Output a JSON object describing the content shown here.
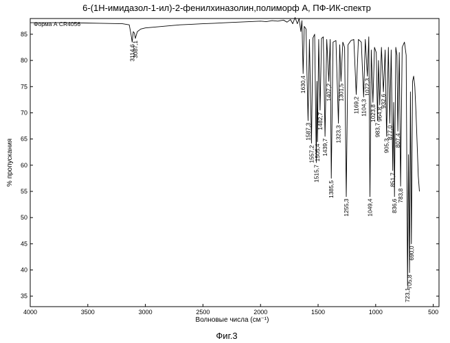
{
  "figure_caption": "Фиг.3",
  "chart_data": {
    "type": "line",
    "title": "6-(1Н-имидазол-1-ил)-2-фенилхиназолин,полиморф А, ПФ-ИК-спектр",
    "series_label": "Форма А CR4056",
    "xlabel": "Волновые числа (см⁻¹)",
    "ylabel": "% пропускания",
    "xlim": [
      4000,
      450
    ],
    "ylim": [
      33,
      88
    ],
    "x_ticks": [
      4000,
      3500,
      3000,
      2500,
      2000,
      1500,
      1000,
      500
    ],
    "y_ticks": [
      35,
      40,
      45,
      50,
      55,
      60,
      65,
      70,
      75,
      80,
      85
    ],
    "grid": false,
    "line_color": "#000000",
    "peaks": [
      {
        "label": "3114,6",
        "x": 3114.6,
        "y": 83.5
      },
      {
        "label": "3087,1",
        "x": 3087.1,
        "y": 84.2
      },
      {
        "label": "1630,4",
        "x": 1630.4,
        "y": 77.5
      },
      {
        "label": "1587,3",
        "x": 1587.3,
        "y": 68.5
      },
      {
        "label": "1557,2",
        "x": 1557.2,
        "y": 64.2
      },
      {
        "label": "1515,7",
        "x": 1515.7,
        "y": 60.5
      },
      {
        "label": "1505,4",
        "x": 1505.4,
        "y": 64.5
      },
      {
        "label": "1482,7",
        "x": 1482.7,
        "y": 70.5
      },
      {
        "label": "1439,7",
        "x": 1439.7,
        "y": 65.5
      },
      {
        "label": "1407,2",
        "x": 1407.2,
        "y": 76.0
      },
      {
        "label": "1385,5",
        "x": 1385.5,
        "y": 57.5
      },
      {
        "label": "1323,3",
        "x": 1323.3,
        "y": 68.0
      },
      {
        "label": "1301,5",
        "x": 1301.5,
        "y": 76.0
      },
      {
        "label": "1255,3",
        "x": 1255.3,
        "y": 54.0
      },
      {
        "label": "1169,2",
        "x": 1169.2,
        "y": 73.5
      },
      {
        "label": "1104,3",
        "x": 1104.3,
        "y": 73.0
      },
      {
        "label": "1072,3",
        "x": 1072.3,
        "y": 77.0
      },
      {
        "label": "1049,4",
        "x": 1049.4,
        "y": 54.0
      },
      {
        "label": "1023,8",
        "x": 1023.8,
        "y": 72.0
      },
      {
        "label": "983,7",
        "x": 983.7,
        "y": 68.5
      },
      {
        "label": "964,8",
        "x": 964.8,
        "y": 71.5
      },
      {
        "label": "932,6",
        "x": 932.6,
        "y": 74.0
      },
      {
        "label": "905,3",
        "x": 905.3,
        "y": 65.5
      },
      {
        "label": "877,0",
        "x": 877.0,
        "y": 68.0
      },
      {
        "label": "851,7",
        "x": 851.7,
        "y": 59.0
      },
      {
        "label": "836,6",
        "x": 836.6,
        "y": 54.0
      },
      {
        "label": "807,4",
        "x": 807.4,
        "y": 66.5
      },
      {
        "label": "783,8",
        "x": 783.8,
        "y": 56.0
      },
      {
        "label": "723,1",
        "x": 723.1,
        "y": 37.0
      },
      {
        "label": "705,8",
        "x": 705.8,
        "y": 39.5
      },
      {
        "label": "690,0",
        "x": 690.0,
        "y": 45.0
      }
    ],
    "spectrum": [
      [
        4000,
        87.2
      ],
      [
        3700,
        87.2
      ],
      [
        3400,
        87.1
      ],
      [
        3200,
        87.0
      ],
      [
        3140,
        86.8
      ],
      [
        3125,
        85.0
      ],
      [
        3114.6,
        83.5
      ],
      [
        3105,
        85.5
      ],
      [
        3095,
        85.2
      ],
      [
        3087.1,
        84.2
      ],
      [
        3070,
        85.5
      ],
      [
        3040,
        86.0
      ],
      [
        3000,
        86.2
      ],
      [
        2900,
        86.4
      ],
      [
        2800,
        86.6
      ],
      [
        2700,
        86.8
      ],
      [
        2600,
        86.9
      ],
      [
        2500,
        87.0
      ],
      [
        2400,
        87.1
      ],
      [
        2300,
        87.2
      ],
      [
        2200,
        87.3
      ],
      [
        2100,
        87.4
      ],
      [
        2000,
        87.5
      ],
      [
        1950,
        87.4
      ],
      [
        1900,
        87.6
      ],
      [
        1850,
        87.5
      ],
      [
        1800,
        87.7
      ],
      [
        1770,
        87.3
      ],
      [
        1740,
        87.8
      ],
      [
        1720,
        87.0
      ],
      [
        1700,
        88.2
      ],
      [
        1680,
        87.0
      ],
      [
        1665,
        88.0
      ],
      [
        1650,
        85.5
      ],
      [
        1640,
        87.6
      ],
      [
        1630.4,
        77.5
      ],
      [
        1620,
        86.5
      ],
      [
        1605,
        86.0
      ],
      [
        1587.3,
        68.5
      ],
      [
        1575,
        84.0
      ],
      [
        1557.2,
        64.2
      ],
      [
        1545,
        84.3
      ],
      [
        1530,
        85.0
      ],
      [
        1515.7,
        60.5
      ],
      [
        1510,
        76.0
      ],
      [
        1505.4,
        64.5
      ],
      [
        1495,
        84.0
      ],
      [
        1482.7,
        70.5
      ],
      [
        1470,
        84.2
      ],
      [
        1455,
        84.5
      ],
      [
        1439.7,
        65.5
      ],
      [
        1425,
        84.0
      ],
      [
        1407.2,
        76.0
      ],
      [
        1395,
        84.0
      ],
      [
        1385.5,
        57.5
      ],
      [
        1370,
        83.5
      ],
      [
        1345,
        83.8
      ],
      [
        1323.3,
        68.0
      ],
      [
        1312,
        83.0
      ],
      [
        1301.5,
        76.0
      ],
      [
        1285,
        83.5
      ],
      [
        1270,
        82.5
      ],
      [
        1255.3,
        54.0
      ],
      [
        1240,
        83.0
      ],
      [
        1215,
        83.8
      ],
      [
        1190,
        84.0
      ],
      [
        1169.2,
        73.5
      ],
      [
        1150,
        84.0
      ],
      [
        1125,
        83.5
      ],
      [
        1104.3,
        73.0
      ],
      [
        1090,
        84.0
      ],
      [
        1072.3,
        77.0
      ],
      [
        1060,
        84.5
      ],
      [
        1049.4,
        54.0
      ],
      [
        1038,
        82.0
      ],
      [
        1023.8,
        72.0
      ],
      [
        1010,
        82.5
      ],
      [
        995,
        81.5
      ],
      [
        983.7,
        68.5
      ],
      [
        975,
        80.0
      ],
      [
        964.8,
        71.5
      ],
      [
        950,
        82.5
      ],
      [
        932.6,
        74.0
      ],
      [
        918,
        82.0
      ],
      [
        905.3,
        65.5
      ],
      [
        890,
        82.5
      ],
      [
        877.0,
        68.0
      ],
      [
        865,
        82.0
      ],
      [
        851.7,
        59.0
      ],
      [
        844,
        72.0
      ],
      [
        836.6,
        54.0
      ],
      [
        825,
        82.5
      ],
      [
        815,
        81.0
      ],
      [
        807.4,
        66.5
      ],
      [
        795,
        81.5
      ],
      [
        783.8,
        56.0
      ],
      [
        770,
        82.5
      ],
      [
        750,
        83.5
      ],
      [
        735,
        81.0
      ],
      [
        723.1,
        37.0
      ],
      [
        715,
        62.0
      ],
      [
        705.8,
        39.5
      ],
      [
        698,
        74.0
      ],
      [
        690.0,
        45.0
      ],
      [
        680,
        76.0
      ],
      [
        670,
        77.0
      ],
      [
        660,
        75.0
      ],
      [
        650,
        70.0
      ],
      [
        640,
        64.0
      ],
      [
        630,
        58.0
      ],
      [
        620,
        55.0
      ]
    ]
  }
}
